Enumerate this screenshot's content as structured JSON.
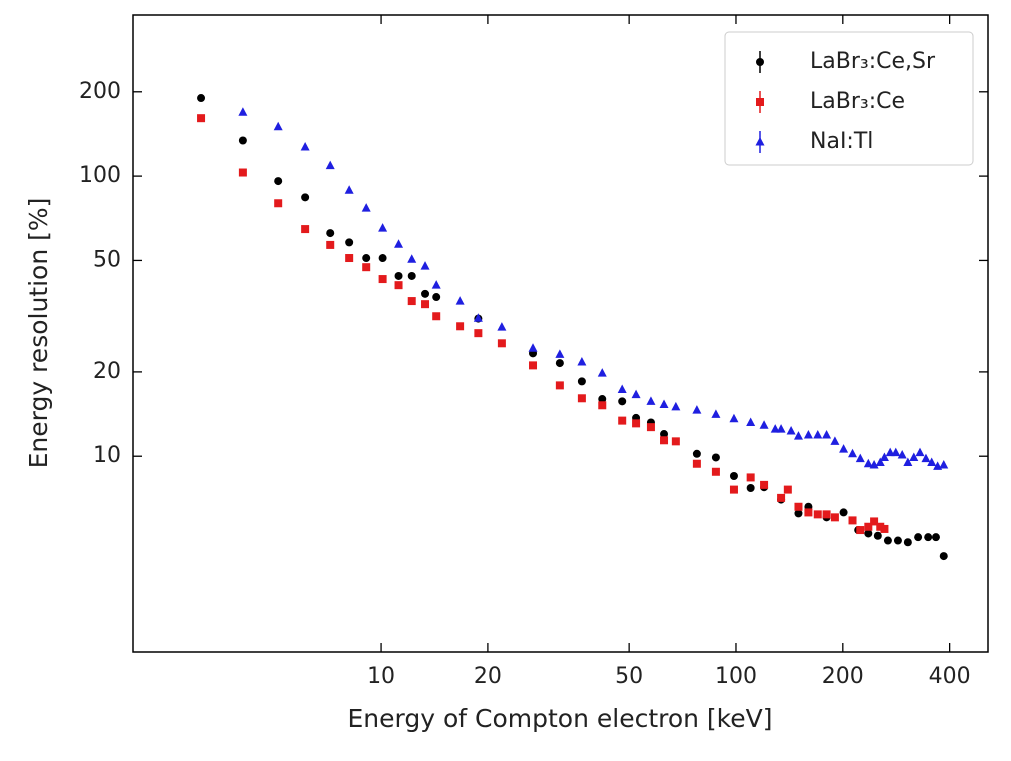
{
  "chart_data": {
    "type": "scatter",
    "x_label": "Energy of Compton electron [keV]",
    "y_label": "Energy resolution [%]",
    "xlog": true,
    "ylog": true,
    "xlim": [
      2,
      513
    ],
    "ylim": [
      2,
      376
    ],
    "xticks": [
      10,
      20,
      50,
      100,
      200,
      400
    ],
    "yticks": [
      10,
      20,
      50,
      100,
      200
    ],
    "legend": "upper right",
    "series": [
      {
        "name": "LaBr₃:Ce,Sr",
        "color": "#000000",
        "marker": "o",
        "x": [
          3.11,
          4.08,
          5.13,
          6.11,
          7.19,
          8.13,
          9.08,
          10.1,
          11.2,
          12.2,
          13.3,
          14.3,
          18.8,
          26.8,
          31.9,
          36.8,
          42,
          47.8,
          52.3,
          57.6,
          62.7,
          77.6,
          87.8,
          98.7,
          110,
          120,
          134,
          150,
          160,
          180,
          201,
          221,
          236,
          251,
          268,
          286,
          305,
          326,
          348,
          366,
          385
        ],
        "values": [
          190,
          134,
          96,
          84,
          62.6,
          58,
          51,
          51,
          44,
          44,
          38,
          37,
          31,
          23.3,
          21.5,
          18.5,
          16,
          15.7,
          13.7,
          13.2,
          12,
          10.2,
          9.9,
          8.5,
          7.7,
          7.75,
          7.0,
          6.25,
          6.6,
          6.05,
          6.3,
          5.45,
          5.3,
          5.2,
          5.0,
          5.0,
          4.93,
          5.14,
          5.14,
          5.14,
          4.4
        ]
      },
      {
        "name": "LaBr₃:Ce",
        "color": "#e31a1c",
        "marker": "s",
        "x": [
          3.11,
          4.08,
          5.13,
          6.11,
          7.19,
          8.13,
          9.08,
          10.1,
          11.2,
          12.2,
          13.3,
          14.3,
          16.7,
          18.8,
          21.9,
          26.8,
          31.9,
          36.8,
          42,
          47.8,
          52.3,
          57.6,
          62.7,
          67.7,
          77.6,
          87.8,
          98.7,
          110,
          120,
          134,
          140,
          150,
          160,
          170,
          180,
          190,
          213,
          224,
          236,
          245,
          255,
          262
        ],
        "values": [
          161,
          103,
          80,
          64.7,
          56.8,
          51,
          47.3,
          42.9,
          40.8,
          35.8,
          34.9,
          31.6,
          29.1,
          27.5,
          25.3,
          21.1,
          17.9,
          16.1,
          15.2,
          13.4,
          13.1,
          12.7,
          11.4,
          11.3,
          9.4,
          8.8,
          7.6,
          8.4,
          7.9,
          7.1,
          7.6,
          6.6,
          6.3,
          6.2,
          6.2,
          6.05,
          5.9,
          5.45,
          5.6,
          5.85,
          5.6,
          5.5
        ]
      },
      {
        "name": "NaI:Tl",
        "color": "#1f1fe0",
        "marker": "^",
        "x": [
          4.08,
          5.13,
          6.11,
          7.19,
          8.13,
          9.08,
          10.1,
          11.2,
          12.2,
          13.3,
          14.3,
          16.7,
          18.8,
          21.9,
          26.8,
          31.9,
          36.8,
          42,
          47.8,
          52.3,
          57.6,
          62.7,
          67.7,
          77.6,
          87.8,
          98.7,
          110,
          120,
          129,
          134,
          143,
          150,
          160,
          170,
          180,
          190,
          201,
          213,
          224,
          236,
          245,
          255,
          262,
          272,
          282,
          294,
          305,
          317,
          330,
          343,
          356,
          370,
          385
        ],
        "values": [
          169,
          150,
          127,
          109,
          89,
          76.9,
          65.2,
          57.1,
          50.5,
          47.7,
          40.8,
          35.8,
          31.1,
          28.9,
          24.3,
          23.1,
          21.7,
          19.8,
          17.3,
          16.6,
          15.7,
          15.3,
          15.0,
          14.6,
          14.1,
          13.6,
          13.2,
          12.9,
          12.5,
          12.5,
          12.3,
          11.8,
          11.9,
          11.9,
          11.9,
          11.3,
          10.6,
          10.2,
          9.8,
          9.4,
          9.3,
          9.5,
          9.9,
          10.3,
          10.3,
          10.1,
          9.5,
          9.9,
          10.3,
          9.8,
          9.5,
          9.2,
          9.3
        ]
      }
    ]
  }
}
